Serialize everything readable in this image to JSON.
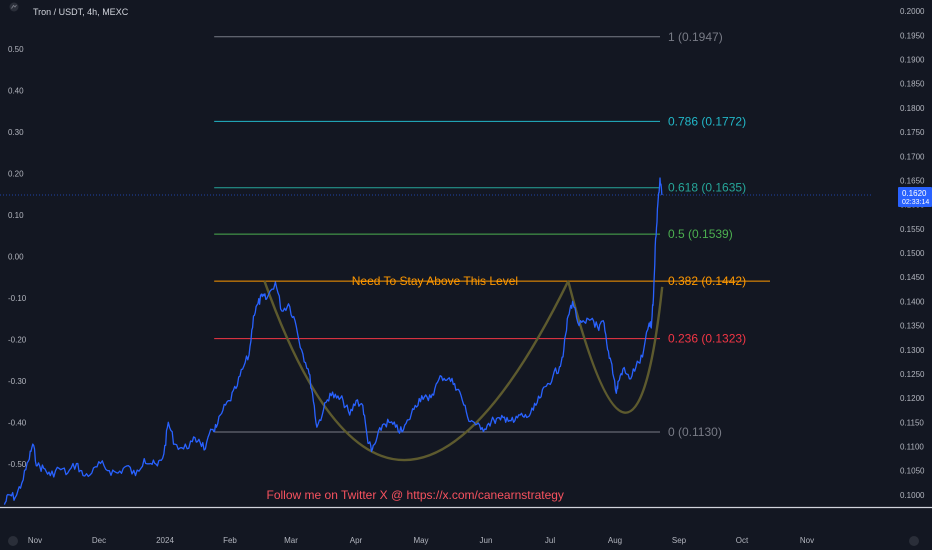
{
  "header": {
    "symbol_label": "Tron / USDT, 4h, MEXC"
  },
  "colors": {
    "background": "#131722",
    "price_line": "#2962ff",
    "cup_curve": "#5d5a2e",
    "price_tag_bg": "#2962ff"
  },
  "chart_data": {
    "type": "line",
    "title": "Tron / USDT, 4h, MEXC",
    "x_labels": [
      "Nov",
      "Dec",
      "2024",
      "Feb",
      "Mar",
      "Apr",
      "May",
      "Jun",
      "Jul",
      "Aug",
      "Sep",
      "Oct",
      "Nov"
    ],
    "x_range": [
      "2023-10-28",
      "2024-11-30"
    ],
    "right_axis": {
      "ticks": [
        "0.2000",
        "0.1950",
        "0.1900",
        "0.1850",
        "0.1800",
        "0.1750",
        "0.1700",
        "0.1650",
        "0.1600",
        "0.1550",
        "0.1500",
        "0.1450",
        "0.1400",
        "0.1350",
        "0.1300",
        "0.1250",
        "0.1200",
        "0.1150",
        "0.1100",
        "0.1050",
        "0.1000"
      ],
      "range": [
        0.0975,
        0.2023
      ]
    },
    "left_axis": {
      "ticks": [
        "0.50",
        "0.40",
        "0.30",
        "0.20",
        "0.10",
        "0.00",
        "-0.10",
        "-0.20",
        "-0.30",
        "-0.40",
        "-0.50"
      ]
    },
    "current_price": {
      "label": "0.1620",
      "countdown": "02:33:14",
      "value": 0.162
    },
    "fibonacci": {
      "start": "2024-02-03",
      "end": "2024-08-25",
      "levels": [
        {
          "ratio": "1",
          "price": 0.1947,
          "label": "1 (0.1947)",
          "color": "#787b86"
        },
        {
          "ratio": "0.786",
          "price": 0.1772,
          "label": "0.786 (0.1772)",
          "color": "#22b7c8"
        },
        {
          "ratio": "0.618",
          "price": 0.1635,
          "label": "0.618 (0.1635)",
          "color": "#26a69a"
        },
        {
          "ratio": "0.5",
          "price": 0.1539,
          "label": "0.5 (0.1539)",
          "color": "#4caf50"
        },
        {
          "ratio": "0.382",
          "price": 0.1442,
          "label": "0.382 (0.1442)",
          "color": "#ff9800"
        },
        {
          "ratio": "0.236",
          "price": 0.1323,
          "label": "0.236 (0.1323)",
          "color": "#f23645"
        },
        {
          "ratio": "0",
          "price": 0.113,
          "label": "0 (0.1130)",
          "color": "#787b86"
        }
      ]
    },
    "price_series": [
      [
        "2023-10-30",
        0.098
      ],
      [
        "2023-11-01",
        0.1
      ],
      [
        "2023-11-04",
        0.0995
      ],
      [
        "2023-11-07",
        0.1025
      ],
      [
        "2023-11-10",
        0.107
      ],
      [
        "2023-11-12",
        0.1105
      ],
      [
        "2023-11-14",
        0.106
      ],
      [
        "2023-11-17",
        0.1055
      ],
      [
        "2023-11-20",
        0.104
      ],
      [
        "2023-11-24",
        0.1055
      ],
      [
        "2023-11-28",
        0.1045
      ],
      [
        "2023-12-02",
        0.1065
      ],
      [
        "2023-12-05",
        0.104
      ],
      [
        "2023-12-09",
        0.1045
      ],
      [
        "2023-12-13",
        0.1065
      ],
      [
        "2023-12-17",
        0.105
      ],
      [
        "2023-12-21",
        0.1045
      ],
      [
        "2023-12-25",
        0.106
      ],
      [
        "2023-12-29",
        0.104
      ],
      [
        "2024-01-02",
        0.1075
      ],
      [
        "2024-01-05",
        0.1065
      ],
      [
        "2024-01-08",
        0.106
      ],
      [
        "2024-01-11",
        0.1085
      ],
      [
        "2024-01-13",
        0.115
      ],
      [
        "2024-01-16",
        0.1105
      ],
      [
        "2024-01-20",
        0.1095
      ],
      [
        "2024-01-24",
        0.111
      ],
      [
        "2024-01-27",
        0.1115
      ],
      [
        "2024-01-30",
        0.1095
      ],
      [
        "2024-02-02",
        0.1135
      ],
      [
        "2024-02-04",
        0.114
      ],
      [
        "2024-02-07",
        0.1175
      ],
      [
        "2024-02-10",
        0.1195
      ],
      [
        "2024-02-13",
        0.122
      ],
      [
        "2024-02-16",
        0.126
      ],
      [
        "2024-02-19",
        0.129
      ],
      [
        "2024-02-21",
        0.137
      ],
      [
        "2024-02-23",
        0.1395
      ],
      [
        "2024-02-25",
        0.141
      ],
      [
        "2024-02-27",
        0.1405
      ],
      [
        "2024-03-02",
        0.144
      ],
      [
        "2024-03-05",
        0.138
      ],
      [
        "2024-03-08",
        0.1395
      ],
      [
        "2024-03-11",
        0.136
      ],
      [
        "2024-03-14",
        0.13
      ],
      [
        "2024-03-17",
        0.126
      ],
      [
        "2024-03-19",
        0.121
      ],
      [
        "2024-03-21",
        0.114
      ],
      [
        "2024-03-24",
        0.1175
      ],
      [
        "2024-03-27",
        0.121
      ],
      [
        "2024-03-30",
        0.12
      ],
      [
        "2024-04-02",
        0.1195
      ],
      [
        "2024-04-05",
        0.1165
      ],
      [
        "2024-04-08",
        0.1195
      ],
      [
        "2024-04-11",
        0.1185
      ],
      [
        "2024-04-13",
        0.112
      ],
      [
        "2024-04-15",
        0.109
      ],
      [
        "2024-04-17",
        0.111
      ],
      [
        "2024-04-20",
        0.1145
      ],
      [
        "2024-04-23",
        0.115
      ],
      [
        "2024-04-26",
        0.114
      ],
      [
        "2024-04-29",
        0.113
      ],
      [
        "2024-05-02",
        0.1155
      ],
      [
        "2024-05-05",
        0.1185
      ],
      [
        "2024-05-08",
        0.1205
      ],
      [
        "2024-05-11",
        0.1195
      ],
      [
        "2024-05-14",
        0.122
      ],
      [
        "2024-05-17",
        0.1245
      ],
      [
        "2024-05-20",
        0.124
      ],
      [
        "2024-05-23",
        0.123
      ],
      [
        "2024-05-26",
        0.1205
      ],
      [
        "2024-05-29",
        0.116
      ],
      [
        "2024-06-01",
        0.115
      ],
      [
        "2024-06-04",
        0.1135
      ],
      [
        "2024-06-07",
        0.1145
      ],
      [
        "2024-06-10",
        0.1155
      ],
      [
        "2024-06-13",
        0.1155
      ],
      [
        "2024-06-16",
        0.116
      ],
      [
        "2024-06-19",
        0.115
      ],
      [
        "2024-06-22",
        0.1165
      ],
      [
        "2024-06-25",
        0.116
      ],
      [
        "2024-06-28",
        0.1175
      ],
      [
        "2024-07-01",
        0.12
      ],
      [
        "2024-07-04",
        0.1225
      ],
      [
        "2024-07-07",
        0.1245
      ],
      [
        "2024-07-10",
        0.1265
      ],
      [
        "2024-07-12",
        0.13
      ],
      [
        "2024-07-14",
        0.137
      ],
      [
        "2024-07-16",
        0.14
      ],
      [
        "2024-07-19",
        0.135
      ],
      [
        "2024-07-22",
        0.1355
      ],
      [
        "2024-07-25",
        0.1365
      ],
      [
        "2024-07-28",
        0.134
      ],
      [
        "2024-07-30",
        0.136
      ],
      [
        "2024-08-01",
        0.13
      ],
      [
        "2024-08-03",
        0.127
      ],
      [
        "2024-08-05",
        0.121
      ],
      [
        "2024-08-06",
        0.1235
      ],
      [
        "2024-08-08",
        0.126
      ],
      [
        "2024-08-11",
        0.124
      ],
      [
        "2024-08-14",
        0.1265
      ],
      [
        "2024-08-17",
        0.1285
      ],
      [
        "2024-08-20",
        0.1355
      ],
      [
        "2024-08-21",
        0.1345
      ],
      [
        "2024-08-22",
        0.141
      ],
      [
        "2024-08-23",
        0.153
      ],
      [
        "2024-08-24",
        0.16
      ],
      [
        "2024-08-25",
        0.1655
      ],
      [
        "2024-08-26",
        0.162
      ]
    ],
    "cup_curves": [
      [
        [
          "2024-02-26",
          0.1442
        ],
        [
          "2024-04-30",
          0.1072
        ],
        [
          "2024-07-14",
          0.1442
        ]
      ],
      [
        [
          "2024-07-14",
          0.1442
        ],
        [
          "2024-08-09",
          0.117
        ],
        [
          "2024-08-26",
          0.143
        ]
      ]
    ],
    "annotations": [
      {
        "text": "Need To Stay Above This Level",
        "date": "2024-05-14",
        "price": 0.1442,
        "color": "#ff9800"
      },
      {
        "text": "Follow me on Twitter X @ https://x.com/canearnstrategy",
        "date": "2024-05-05",
        "price": 0.1,
        "color": "#f7525f"
      }
    ]
  }
}
